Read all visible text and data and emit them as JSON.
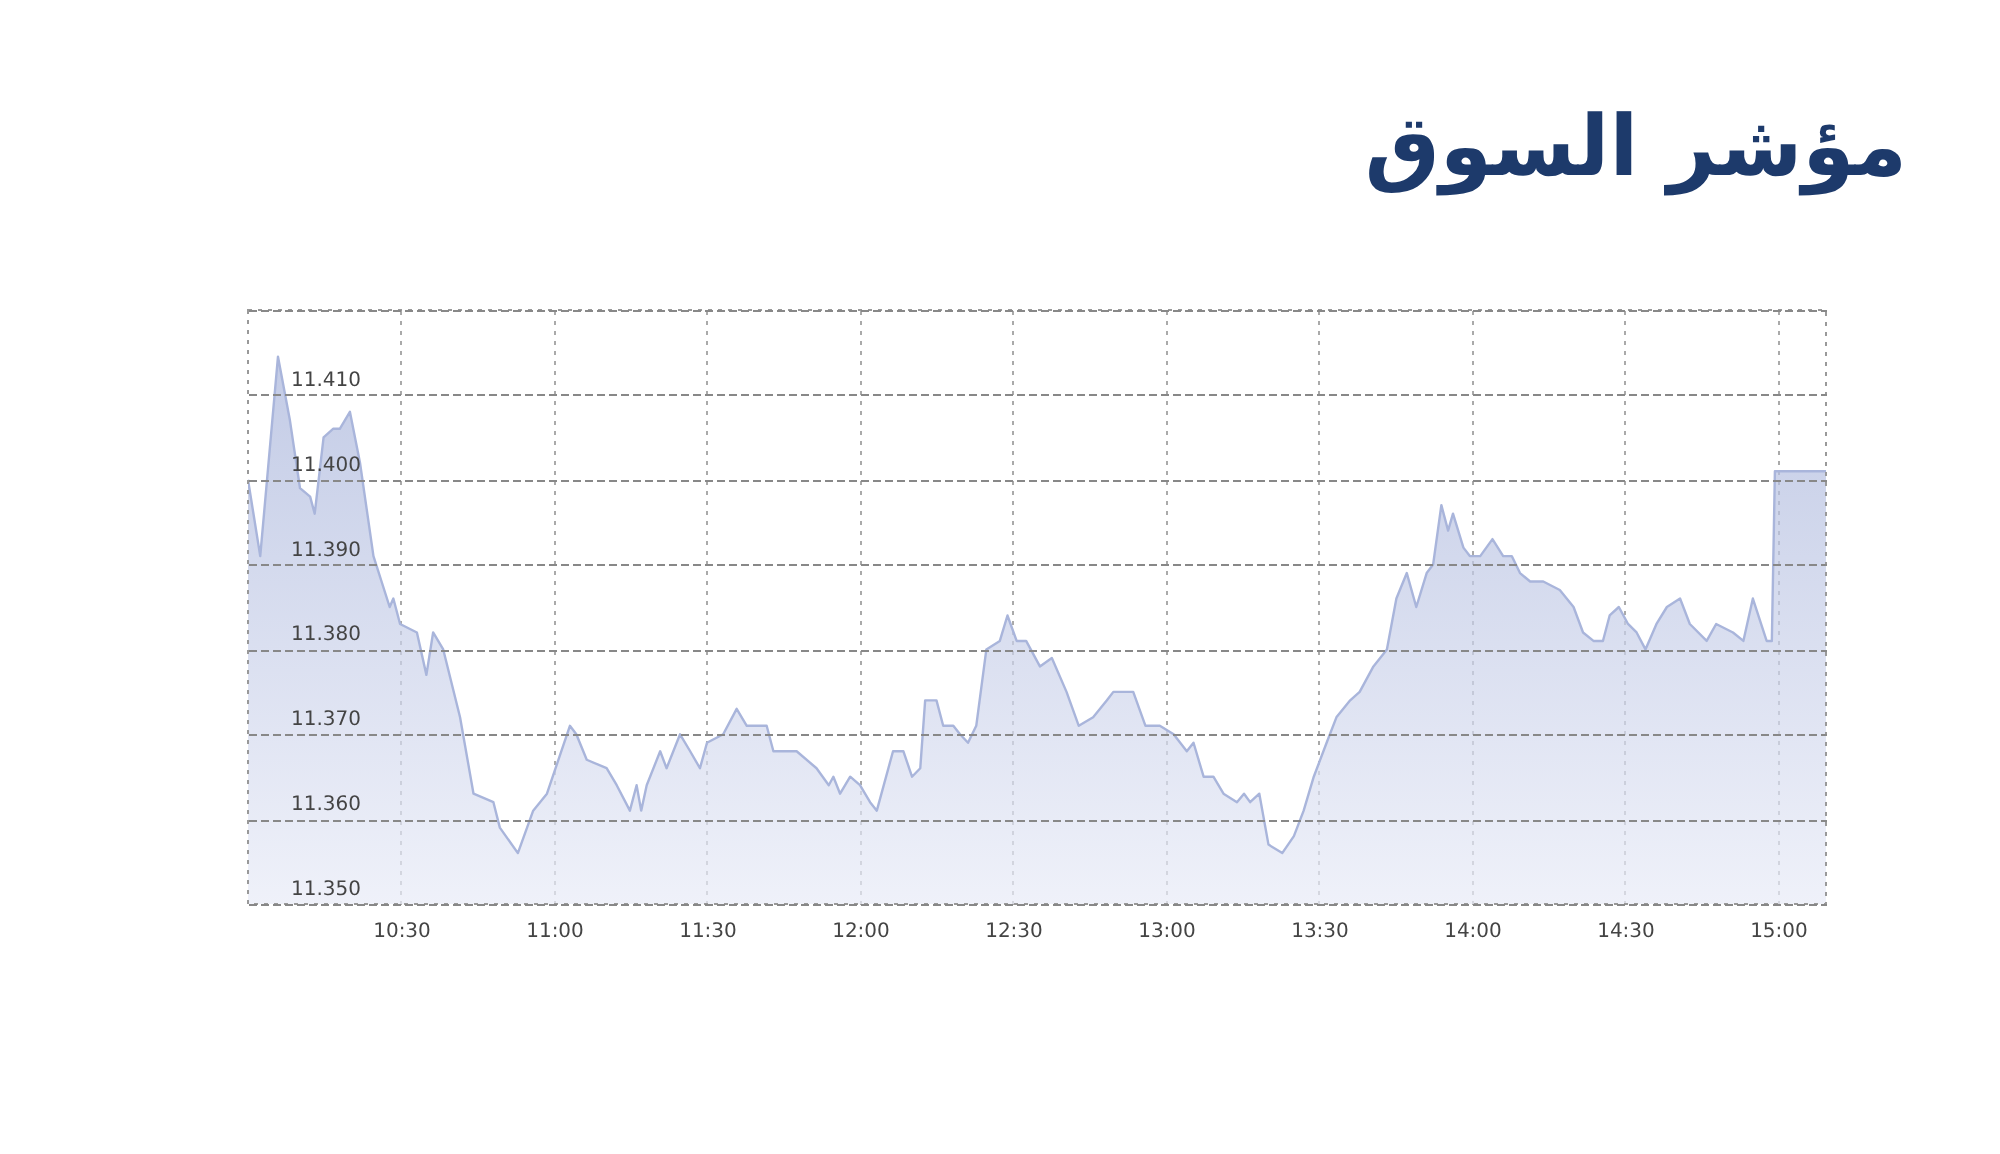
{
  "chart_data": {
    "type": "area",
    "title": "مؤشر السوق",
    "x": [
      10.0,
      10.04,
      10.098,
      10.137,
      10.17,
      10.203,
      10.218,
      10.247,
      10.278,
      10.3,
      10.333,
      10.366,
      10.41,
      10.463,
      10.475,
      10.497,
      10.552,
      10.583,
      10.605,
      10.638,
      10.693,
      10.737,
      10.802,
      10.823,
      10.882,
      10.932,
      10.977,
      11.052,
      11.073,
      11.107,
      11.172,
      11.205,
      11.248,
      11.27,
      11.285,
      11.303,
      11.347,
      11.368,
      11.412,
      11.445,
      11.477,
      11.5,
      11.553,
      11.597,
      11.63,
      11.695,
      11.717,
      11.793,
      11.858,
      11.898,
      11.913,
      11.935,
      11.968,
      12.0,
      12.033,
      12.055,
      12.108,
      12.142,
      12.17,
      12.197,
      12.213,
      12.25,
      12.272,
      12.305,
      12.327,
      12.353,
      12.38,
      12.413,
      12.457,
      12.482,
      12.512,
      12.543,
      12.588,
      12.627,
      12.675,
      12.715,
      12.762,
      12.807,
      12.828,
      12.86,
      12.893,
      12.933,
      12.98,
      13.025,
      13.068,
      13.09,
      13.123,
      13.155,
      13.188,
      13.232,
      13.255,
      13.275,
      13.305,
      13.335,
      13.38,
      13.418,
      13.45,
      13.483,
      13.525,
      13.557,
      13.602,
      13.633,
      13.678,
      13.722,
      13.753,
      13.787,
      13.818,
      13.852,
      13.873,
      13.9,
      13.922,
      13.938,
      13.972,
      13.993,
      14.027,
      14.067,
      14.102,
      14.13,
      14.157,
      14.19,
      14.233,
      14.287,
      14.332,
      14.363,
      14.397,
      14.428,
      14.45,
      14.48,
      14.51,
      14.538,
      14.567,
      14.603,
      14.637,
      14.68,
      14.712,
      14.767,
      14.798,
      14.853,
      14.887,
      14.918,
      14.963,
      14.98,
      14.99,
      15.157
    ],
    "series": [
      {
        "color": "#a9b5db",
        "values": [
          11.4,
          11.391,
          11.4145,
          11.407,
          11.399,
          11.398,
          11.396,
          11.405,
          11.406,
          11.406,
          11.408,
          11.402,
          11.391,
          11.385,
          11.386,
          11.383,
          11.382,
          11.377,
          11.382,
          11.38,
          11.372,
          11.363,
          11.362,
          11.359,
          11.356,
          11.361,
          11.363,
          11.371,
          11.37,
          11.367,
          11.366,
          11.364,
          11.361,
          11.364,
          11.361,
          11.364,
          11.368,
          11.366,
          11.37,
          11.368,
          11.366,
          11.369,
          11.37,
          11.373,
          11.371,
          11.371,
          11.368,
          11.368,
          11.366,
          11.364,
          11.365,
          11.363,
          11.365,
          11.364,
          11.362,
          11.361,
          11.368,
          11.368,
          11.365,
          11.366,
          11.374,
          11.374,
          11.371,
          11.371,
          11.37,
          11.369,
          11.371,
          11.38,
          11.381,
          11.384,
          11.381,
          11.381,
          11.378,
          11.379,
          11.375,
          11.371,
          11.372,
          11.374,
          11.375,
          11.375,
          11.375,
          11.371,
          11.371,
          11.37,
          11.368,
          11.369,
          11.365,
          11.365,
          11.363,
          11.362,
          11.363,
          11.362,
          11.363,
          11.357,
          11.356,
          11.358,
          11.361,
          11.365,
          11.369,
          11.372,
          11.374,
          11.375,
          11.378,
          11.38,
          11.386,
          11.389,
          11.385,
          11.389,
          11.39,
          11.397,
          11.394,
          11.396,
          11.392,
          11.391,
          11.391,
          11.393,
          11.391,
          11.391,
          11.389,
          11.388,
          11.388,
          11.387,
          11.385,
          11.382,
          11.381,
          11.381,
          11.384,
          11.385,
          11.383,
          11.382,
          11.38,
          11.383,
          11.385,
          11.386,
          11.383,
          11.381,
          11.383,
          11.382,
          11.381,
          11.386,
          11.381,
          11.381,
          11.401,
          11.401
        ]
      }
    ],
    "xlim": [
      10.0,
      15.157
    ],
    "xticks": [
      {
        "value": 10.5,
        "label": "10:30"
      },
      {
        "value": 11.0,
        "label": "11:00"
      },
      {
        "value": 11.5,
        "label": "11:30"
      },
      {
        "value": 12.0,
        "label": "12:00"
      },
      {
        "value": 12.5,
        "label": "12:30"
      },
      {
        "value": 13.0,
        "label": "13:00"
      },
      {
        "value": 13.5,
        "label": "13:30"
      },
      {
        "value": 14.0,
        "label": "14:00"
      },
      {
        "value": 14.5,
        "label": "14:30"
      },
      {
        "value": 15.0,
        "label": "15:00"
      }
    ],
    "ylim": [
      11.35,
      11.42
    ],
    "yticks": [
      {
        "value": 11.35,
        "label": "11.350"
      },
      {
        "value": 11.36,
        "label": "11.360"
      },
      {
        "value": 11.37,
        "label": "11.370"
      },
      {
        "value": 11.38,
        "label": "11.380"
      },
      {
        "value": 11.39,
        "label": "11.390"
      },
      {
        "value": 11.4,
        "label": "11.400"
      },
      {
        "value": 11.41,
        "label": "11.410"
      },
      {
        "value": 11.42,
        "label": null
      }
    ],
    "grid": true,
    "line_style": "solid",
    "marker": "none"
  }
}
